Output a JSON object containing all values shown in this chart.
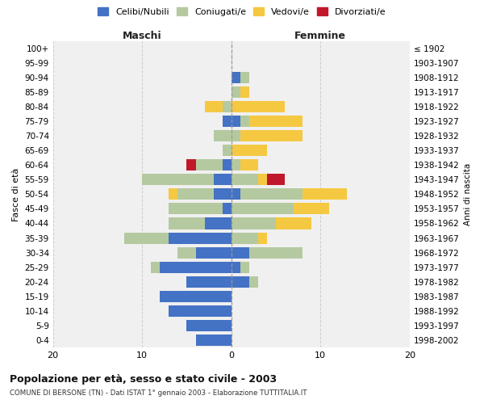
{
  "age_groups_bottom_to_top": [
    "0-4",
    "5-9",
    "10-14",
    "15-19",
    "20-24",
    "25-29",
    "30-34",
    "35-39",
    "40-44",
    "45-49",
    "50-54",
    "55-59",
    "60-64",
    "65-69",
    "70-74",
    "75-79",
    "80-84",
    "85-89",
    "90-94",
    "95-99",
    "100+"
  ],
  "birth_years_bottom_to_top": [
    "1998-2002",
    "1993-1997",
    "1988-1992",
    "1983-1987",
    "1978-1982",
    "1973-1977",
    "1968-1972",
    "1963-1967",
    "1958-1962",
    "1953-1957",
    "1948-1952",
    "1943-1947",
    "1938-1942",
    "1933-1937",
    "1928-1932",
    "1923-1927",
    "1918-1922",
    "1913-1917",
    "1908-1912",
    "1903-1907",
    "≤ 1902"
  ],
  "maschi": {
    "celibi": [
      4,
      5,
      7,
      8,
      5,
      8,
      4,
      7,
      3,
      1,
      2,
      2,
      1,
      0,
      0,
      1,
      0,
      0,
      0,
      0,
      0
    ],
    "coniugati": [
      0,
      0,
      0,
      0,
      0,
      1,
      2,
      5,
      4,
      6,
      4,
      8,
      3,
      1,
      2,
      0,
      1,
      0,
      0,
      0,
      0
    ],
    "vedovi": [
      0,
      0,
      0,
      0,
      0,
      0,
      0,
      0,
      0,
      0,
      1,
      0,
      0,
      0,
      0,
      0,
      2,
      0,
      0,
      0,
      0
    ],
    "divorziati": [
      0,
      0,
      0,
      0,
      0,
      0,
      0,
      0,
      0,
      0,
      0,
      0,
      1,
      0,
      0,
      0,
      0,
      0,
      0,
      0,
      0
    ]
  },
  "femmine": {
    "nubili": [
      0,
      0,
      0,
      0,
      2,
      1,
      2,
      0,
      0,
      0,
      1,
      0,
      0,
      0,
      0,
      1,
      0,
      0,
      1,
      0,
      0
    ],
    "coniugate": [
      0,
      0,
      0,
      0,
      1,
      1,
      6,
      3,
      5,
      7,
      7,
      3,
      1,
      0,
      1,
      1,
      0,
      1,
      1,
      0,
      0
    ],
    "vedove": [
      0,
      0,
      0,
      0,
      0,
      0,
      0,
      1,
      4,
      4,
      5,
      1,
      2,
      4,
      7,
      6,
      6,
      1,
      0,
      0,
      0
    ],
    "divorziate": [
      0,
      0,
      0,
      0,
      0,
      0,
      0,
      0,
      0,
      0,
      0,
      2,
      0,
      0,
      0,
      0,
      0,
      0,
      0,
      0,
      0
    ]
  },
  "colors": {
    "celibi_nubili": "#4472c4",
    "coniugati": "#b5c9a0",
    "vedovi": "#f5c842",
    "divorziati": "#c0182a"
  },
  "xlim": [
    -20,
    20
  ],
  "xticks": [
    -20,
    -10,
    0,
    10,
    20
  ],
  "xticklabels": [
    "20",
    "10",
    "0",
    "10",
    "20"
  ],
  "title": "Popolazione per età, sesso e stato civile - 2003",
  "subtitle": "COMUNE DI BERSONE (TN) - Dati ISTAT 1° gennaio 2003 - Elaborazione TUTTITALIA.IT",
  "ylabel": "Fasce di età",
  "ylabel_right": "Anni di nascita",
  "legend_labels": [
    "Celibi/Nubili",
    "Coniugati/e",
    "Vedovi/e",
    "Divorziati/e"
  ],
  "maschi_label": "Maschi",
  "femmine_label": "Femmine",
  "background_color": "#ffffff",
  "grid_color": "#cccccc"
}
